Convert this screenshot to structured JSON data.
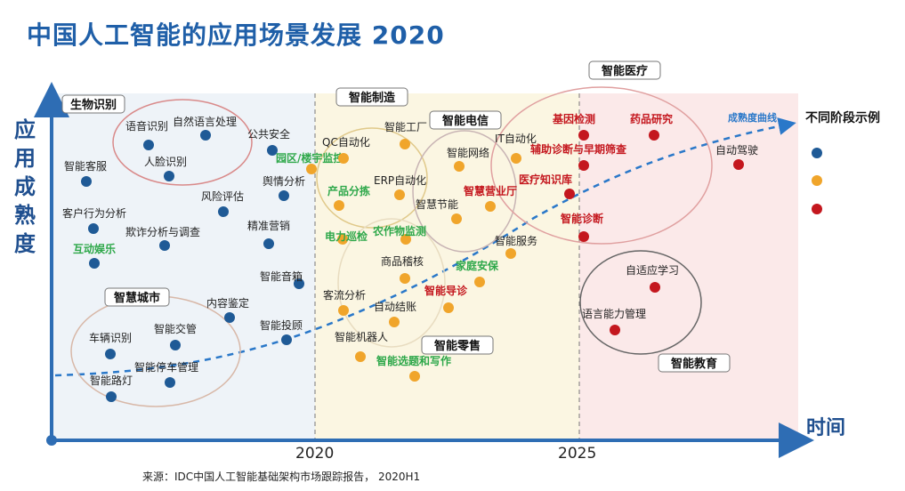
{
  "title": "中国人工智能的应用场景发展 2020",
  "y_axis_label": "应用成熟度",
  "x_axis_label": "时间",
  "source": "来源：IDC中国人工智能基础架构市场跟踪报告， 2020H1",
  "legend": {
    "title": "不同阶段示例"
  },
  "colors": {
    "blue": "#1f5a96",
    "orange": "#f0a52b",
    "red": "#c4171e",
    "green": "#2ea84a",
    "black": "#222222",
    "curve": "#2a78c9",
    "axis": "#2e6db4"
  },
  "chart_data": {
    "type": "scatter",
    "title": "中国人工智能的应用场景发展 2020",
    "xlabel": "时间",
    "ylabel": "应用成熟度",
    "x_ticks": [
      "2020",
      "2025"
    ],
    "curve_label": "成熟度曲线",
    "groups": [
      {
        "label": "生物识别"
      },
      {
        "label": "智能制造"
      },
      {
        "label": "智能电信"
      },
      {
        "label": "智能医疗"
      },
      {
        "label": "智慧城市"
      },
      {
        "label": "智能零售"
      },
      {
        "label": "智能教育"
      }
    ],
    "points": [
      {
        "label": "语音识别",
        "color": "blue",
        "text": "black"
      },
      {
        "label": "自然语言处理",
        "color": "blue",
        "text": "black"
      },
      {
        "label": "人脸识别",
        "color": "blue",
        "text": "black"
      },
      {
        "label": "智能客服",
        "color": "blue",
        "text": "black"
      },
      {
        "label": "公共安全",
        "color": "blue",
        "text": "black"
      },
      {
        "label": "园区/楼宇监控",
        "color": "orange",
        "text": "green"
      },
      {
        "label": "舆情分析",
        "color": "blue",
        "text": "black"
      },
      {
        "label": "风险评估",
        "color": "blue",
        "text": "black"
      },
      {
        "label": "客户行为分析",
        "color": "blue",
        "text": "black"
      },
      {
        "label": "欺诈分析与调查",
        "color": "blue",
        "text": "black"
      },
      {
        "label": "精准营销",
        "color": "blue",
        "text": "black"
      },
      {
        "label": "互动娱乐",
        "color": "blue",
        "text": "green"
      },
      {
        "label": "智能音箱",
        "color": "blue",
        "text": "black"
      },
      {
        "label": "内容鉴定",
        "color": "blue",
        "text": "black"
      },
      {
        "label": "智能投顾",
        "color": "blue",
        "text": "black"
      },
      {
        "label": "车辆识别",
        "color": "blue",
        "text": "black"
      },
      {
        "label": "智能交管",
        "color": "blue",
        "text": "black"
      },
      {
        "label": "智能停车管理",
        "color": "blue",
        "text": "black"
      },
      {
        "label": "智能路灯",
        "color": "blue",
        "text": "black"
      },
      {
        "label": "QC自动化",
        "color": "orange",
        "text": "black"
      },
      {
        "label": "智能工厂",
        "color": "orange",
        "text": "black"
      },
      {
        "label": "产品分拣",
        "color": "orange",
        "text": "green"
      },
      {
        "label": "ERP自动化",
        "color": "orange",
        "text": "black"
      },
      {
        "label": "智能网络",
        "color": "orange",
        "text": "black"
      },
      {
        "label": "智慧节能",
        "color": "orange",
        "text": "black"
      },
      {
        "label": "智慧营业厅",
        "color": "orange",
        "text": "red"
      },
      {
        "label": "电力巡检",
        "color": "orange",
        "text": "green"
      },
      {
        "label": "农作物监测",
        "color": "orange",
        "text": "green"
      },
      {
        "label": "商品稽核",
        "color": "orange",
        "text": "black"
      },
      {
        "label": "客流分析",
        "color": "orange",
        "text": "black"
      },
      {
        "label": "自动结账",
        "color": "orange",
        "text": "black"
      },
      {
        "label": "智能机器人",
        "color": "orange",
        "text": "black"
      },
      {
        "label": "智能导诊",
        "color": "orange",
        "text": "red"
      },
      {
        "label": "家庭安保",
        "color": "orange",
        "text": "green"
      },
      {
        "label": "智能服务",
        "color": "orange",
        "text": "black"
      },
      {
        "label": "智能选题和写作",
        "color": "orange",
        "text": "green"
      },
      {
        "label": "IT自动化",
        "color": "orange",
        "text": "black"
      },
      {
        "label": "基因检测",
        "color": "red",
        "text": "red"
      },
      {
        "label": "药品研究",
        "color": "red",
        "text": "red"
      },
      {
        "label": "辅助诊断与早期筛查",
        "color": "red",
        "text": "red"
      },
      {
        "label": "医疗知识库",
        "color": "red",
        "text": "red"
      },
      {
        "label": "智能诊断",
        "color": "red",
        "text": "red"
      },
      {
        "label": "自动驾驶",
        "color": "red",
        "text": "black"
      },
      {
        "label": "自适应学习",
        "color": "red",
        "text": "black"
      },
      {
        "label": "语言能力管理",
        "color": "red",
        "text": "black"
      }
    ]
  }
}
